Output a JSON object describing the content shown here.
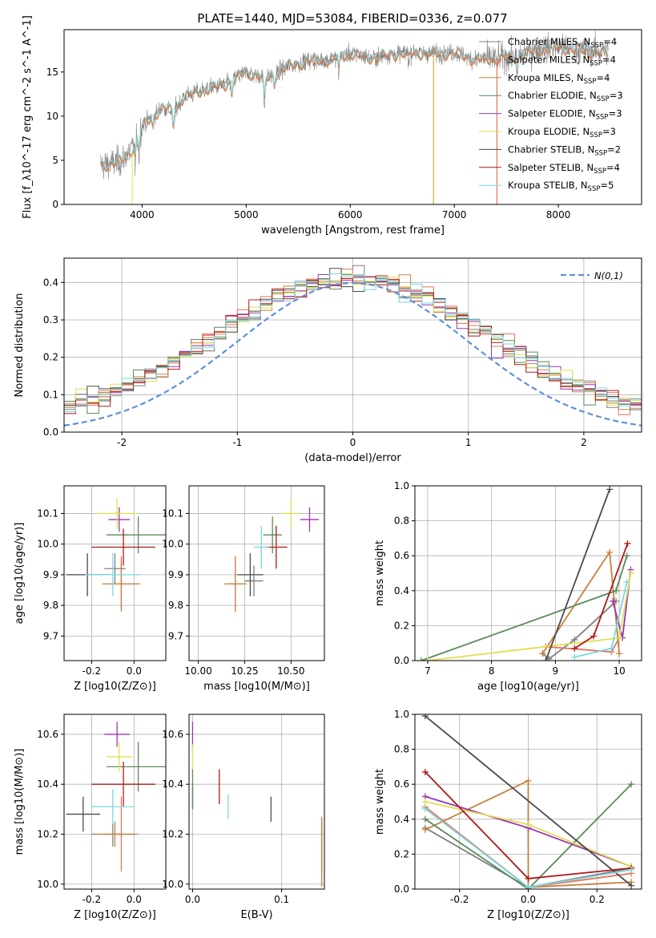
{
  "title": "PLATE=1440, MJD=53084, FIBERID=0336, z=0.077",
  "models": [
    {
      "name": "Chabrier MILES",
      "nssp": "4",
      "color": "#7f7f7f"
    },
    {
      "name": "Salpeter MILES",
      "nssp": "4",
      "color": "#e8735a"
    },
    {
      "name": "Kroupa MILES",
      "nssp": "4",
      "color": "#c8803c"
    },
    {
      "name": "Chabrier ELODIE",
      "nssp": "3",
      "color": "#5a8a5a"
    },
    {
      "name": "Salpeter ELODIE",
      "nssp": "3",
      "color": "#9a35b0"
    },
    {
      "name": "Kroupa ELODIE",
      "nssp": "3",
      "color": "#dfe050"
    },
    {
      "name": "Chabrier STELIB",
      "nssp": "2",
      "color": "#4a4a4a"
    },
    {
      "name": "Salpeter STELIB",
      "nssp": "4",
      "color": "#b01818"
    },
    {
      "name": "Kroupa STELIB",
      "nssp": "5",
      "color": "#7ad8e0"
    }
  ],
  "chart_data": [
    {
      "id": "spectrum",
      "type": "line",
      "xlabel": "wavelength [Angstrom, rest frame]",
      "ylabel": "Flux [f_λ10^-17 erg cm^-2 s^-1 A^-1]",
      "xlim": [
        3250,
        8800
      ],
      "ylim": [
        0,
        19.8
      ],
      "xticks": [
        4000,
        5000,
        6000,
        7000,
        8000
      ],
      "yticks": [
        0,
        5,
        10,
        15
      ],
      "legend": "right",
      "data_range": [
        3600,
        8480
      ],
      "continuum": [
        [
          3600,
          4.5
        ],
        [
          3700,
          4.6
        ],
        [
          3800,
          4.9
        ],
        [
          3900,
          6.3
        ],
        [
          4000,
          8.8
        ],
        [
          4100,
          10.0
        ],
        [
          4200,
          11.0
        ],
        [
          4300,
          10.5
        ],
        [
          4400,
          12.2
        ],
        [
          4600,
          13.0
        ],
        [
          4800,
          13.6
        ],
        [
          5000,
          15.0
        ],
        [
          5200,
          14.3
        ],
        [
          5400,
          15.6
        ],
        [
          5600,
          16.3
        ],
        [
          5800,
          16.4
        ],
        [
          6000,
          17.1
        ],
        [
          6200,
          16.6
        ],
        [
          6400,
          17.0
        ],
        [
          6600,
          17.2
        ],
        [
          6800,
          17.1
        ],
        [
          7000,
          17.2
        ],
        [
          7200,
          16.4
        ],
        [
          7400,
          16.5
        ],
        [
          7600,
          16.8
        ],
        [
          7800,
          17.6
        ],
        [
          8000,
          17.8
        ],
        [
          8200,
          17.5
        ],
        [
          8480,
          17.2
        ]
      ]
    },
    {
      "id": "residuals",
      "type": "bar",
      "xlabel": "(data-model)/error",
      "ylabel": "Normed distribution",
      "xlim": [
        -2.5,
        2.5
      ],
      "ylim": [
        0,
        0.465
      ],
      "xticks": [
        -2,
        -1,
        0,
        1,
        2
      ],
      "yticks": [
        0.0,
        0.1,
        0.2,
        0.3,
        0.4
      ],
      "legend_label": "N(0,1)",
      "gaussian": {
        "mean": 0,
        "sigma": 1
      }
    },
    {
      "id": "age_vs_Z",
      "type": "scatter",
      "xlabel": "Z [log10(Z/Z⊙)]",
      "ylabel": "age [log10(age/yr)]",
      "xlim": [
        -0.33,
        0.15
      ],
      "ylim": [
        9.62,
        10.19
      ],
      "xticks": [
        -0.2,
        0.0
      ],
      "yticks": [
        9.7,
        9.8,
        9.9,
        10.0,
        10.1
      ],
      "points": [
        {
          "x": -0.09,
          "xe": 0.05,
          "y": 9.92,
          "ye": 0.05
        },
        {
          "x": -0.06,
          "xe": 0.08,
          "y": 9.87,
          "ye": 0.08
        },
        {
          "x": -0.06,
          "xe": 0.09,
          "y": 9.87,
          "ye": 0.09
        },
        {
          "x": 0.02,
          "xe": 0.15,
          "y": 10.03,
          "ye": 0.06
        },
        {
          "x": -0.07,
          "xe": 0.05,
          "y": 10.08,
          "ye": 0.04
        },
        {
          "x": -0.08,
          "xe": 0.1,
          "y": 10.1,
          "ye": 0.05
        },
        {
          "x": -0.22,
          "xe": 0.1,
          "y": 9.9,
          "ye": 0.07
        },
        {
          "x": -0.05,
          "xe": 0.15,
          "y": 9.99,
          "ye": 0.06
        },
        {
          "x": -0.1,
          "xe": 0.13,
          "y": 9.9,
          "ye": 0.07
        }
      ]
    },
    {
      "id": "age_vs_mass",
      "type": "scatter",
      "xlabel": "mass [log10(M/M⊙)]",
      "ylabel": "",
      "xlim": [
        9.95,
        10.68
      ],
      "ylim": [
        9.62,
        10.19
      ],
      "xticks": [
        10.0,
        10.25,
        10.5
      ],
      "yticks": [
        9.7,
        9.8,
        9.9,
        10.0,
        10.1
      ],
      "points": [
        {
          "x": 10.3,
          "xe": 0.05,
          "y": 9.88,
          "ye": 0.05
        },
        {
          "x": 10.2,
          "xe": 0.05,
          "y": 9.87,
          "ye": 0.09
        },
        {
          "x": 10.2,
          "xe": 0.06,
          "y": 9.87,
          "ye": 0.09
        },
        {
          "x": 10.4,
          "xe": 0.05,
          "y": 10.03,
          "ye": 0.06
        },
        {
          "x": 10.6,
          "xe": 0.05,
          "y": 10.08,
          "ye": 0.04
        },
        {
          "x": 10.5,
          "xe": 0.05,
          "y": 10.1,
          "ye": 0.05
        },
        {
          "x": 10.28,
          "xe": 0.07,
          "y": 9.9,
          "ye": 0.07
        },
        {
          "x": 10.42,
          "xe": 0.06,
          "y": 9.99,
          "ye": 0.07
        },
        {
          "x": 10.34,
          "xe": 0.04,
          "y": 9.99,
          "ye": 0.07
        }
      ]
    },
    {
      "id": "mw_vs_age",
      "type": "line",
      "xlabel": "age [log10(age/yr)]",
      "ylabel": "mass weight",
      "xlim": [
        6.8,
        10.35
      ],
      "ylim": [
        0,
        1.0
      ],
      "xticks": [
        7,
        8,
        9,
        10
      ],
      "yticks": [
        0.0,
        0.2,
        0.4,
        0.6,
        0.8,
        1.0
      ],
      "series": [
        {
          "x": [
            8.8,
            8.9,
            9.3,
            9.95
          ],
          "y": [
            0.04,
            0.01,
            0.12,
            0.34
          ]
        },
        {
          "x": [
            8.85,
            9.88,
            10.0
          ],
          "y": [
            0.08,
            0.05,
            0.13
          ]
        },
        {
          "x": [
            8.8,
            9.85,
            10.0
          ],
          "y": [
            0.04,
            0.62,
            0.04
          ]
        },
        {
          "x": [
            6.9,
            9.95,
            10.12
          ],
          "y": [
            0.0,
            0.4,
            0.6
          ]
        },
        {
          "x": [
            9.9,
            10.05,
            10.18
          ],
          "y": [
            0.34,
            0.13,
            0.52
          ]
        },
        {
          "x": [
            7.0,
            10.0,
            10.18
          ],
          "y": [
            0.0,
            0.13,
            0.5
          ]
        },
        {
          "x": [
            8.85,
            9.85
          ],
          "y": [
            0.0,
            0.98
          ]
        },
        {
          "x": [
            9.3,
            9.6,
            10.13
          ],
          "y": [
            0.07,
            0.14,
            0.67
          ]
        },
        {
          "x": [
            9.3,
            9.88,
            10.12
          ],
          "y": [
            0.02,
            0.07,
            0.45
          ]
        }
      ]
    },
    {
      "id": "mass_vs_Z",
      "type": "scatter",
      "xlabel": "Z [log10(Z/Z⊙)]",
      "ylabel": "mass [log10(M/M⊙)]",
      "xlim": [
        -0.33,
        0.15
      ],
      "ylim": [
        9.98,
        10.68
      ],
      "xticks": [
        -0.2,
        0.0
      ],
      "yticks": [
        10.0,
        10.2,
        10.4,
        10.6
      ],
      "points": [
        {
          "x": -0.1,
          "xe": 0.1,
          "y": 10.2,
          "ye": 0.05
        },
        {
          "x": -0.06,
          "xe": 0.08,
          "y": 10.2,
          "ye": 0.15
        },
        {
          "x": -0.09,
          "xe": 0.1,
          "y": 10.2,
          "ye": 0.05
        },
        {
          "x": 0.02,
          "xe": 0.15,
          "y": 10.47,
          "ye": 0.1
        },
        {
          "x": -0.08,
          "xe": 0.06,
          "y": 10.6,
          "ye": 0.05
        },
        {
          "x": -0.07,
          "xe": 0.06,
          "y": 10.51,
          "ye": 0.06
        },
        {
          "x": -0.24,
          "xe": 0.08,
          "y": 10.28,
          "ye": 0.07
        },
        {
          "x": -0.05,
          "xe": 0.15,
          "y": 10.4,
          "ye": 0.09
        },
        {
          "x": -0.1,
          "xe": 0.1,
          "y": 10.31,
          "ye": 0.07
        }
      ]
    },
    {
      "id": "mass_vs_ebv",
      "type": "scatter",
      "xlabel": "E(B-V)",
      "ylabel": "",
      "xlim": [
        -0.004,
        0.148
      ],
      "ylim": [
        9.98,
        10.68
      ],
      "xticks": [
        0.0,
        0.1
      ],
      "yticks": [
        10.0,
        10.2,
        10.4,
        10.6
      ],
      "points": [
        {
          "x": 0.0,
          "y": 10.35,
          "ye": 0.05
        },
        {
          "x": 0.145,
          "y": 10.15,
          "ye": 0.12
        },
        {
          "x": 0.145,
          "y": 10.12,
          "ye": 0.13
        },
        {
          "x": 0.0,
          "y": 10.38,
          "ye": 0.08
        },
        {
          "x": 0.0,
          "y": 10.6,
          "ye": 0.05
        },
        {
          "x": 0.0,
          "y": 10.51,
          "ye": 0.05
        },
        {
          "x": 0.088,
          "y": 10.3,
          "ye": 0.05
        },
        {
          "x": 0.03,
          "y": 10.39,
          "ye": 0.07
        },
        {
          "x": 0.04,
          "y": 10.31,
          "ye": 0.05
        }
      ]
    },
    {
      "id": "mw_vs_Z",
      "type": "line",
      "xlabel": "Z [log10(Z/Z⊙)]",
      "ylabel": "mass weight",
      "xlim": [
        -0.33,
        0.33
      ],
      "ylim": [
        0,
        1.0
      ],
      "xticks": [
        -0.2,
        0.0,
        0.2
      ],
      "yticks": [
        0.0,
        0.2,
        0.4,
        0.6,
        0.8,
        1.0
      ],
      "series": [
        {
          "x": [
            -0.3,
            0.0,
            0.3
          ],
          "y": [
            0.35,
            0.01,
            0.12
          ]
        },
        {
          "x": [
            -0.3,
            0.0,
            0.3
          ],
          "y": [
            0.47,
            0.01,
            0.09
          ]
        },
        {
          "x": [
            -0.3,
            0.0,
            0.0,
            0.3
          ],
          "y": [
            0.34,
            0.62,
            0.01,
            0.04
          ]
        },
        {
          "x": [
            -0.3,
            0.0,
            0.3
          ],
          "y": [
            0.4,
            0.0,
            0.6
          ]
        },
        {
          "x": [
            -0.3,
            0.0,
            0.3
          ],
          "y": [
            0.53,
            0.35,
            0.13
          ]
        },
        {
          "x": [
            -0.3,
            0.0,
            0.3
          ],
          "y": [
            0.5,
            0.37,
            0.13
          ]
        },
        {
          "x": [
            -0.3,
            0.3
          ],
          "y": [
            0.99,
            0.02
          ]
        },
        {
          "x": [
            -0.3,
            0.0,
            0.3
          ],
          "y": [
            0.67,
            0.06,
            0.12
          ]
        },
        {
          "x": [
            -0.3,
            0.0,
            0.3
          ],
          "y": [
            0.46,
            0.01,
            0.11
          ]
        }
      ]
    }
  ]
}
